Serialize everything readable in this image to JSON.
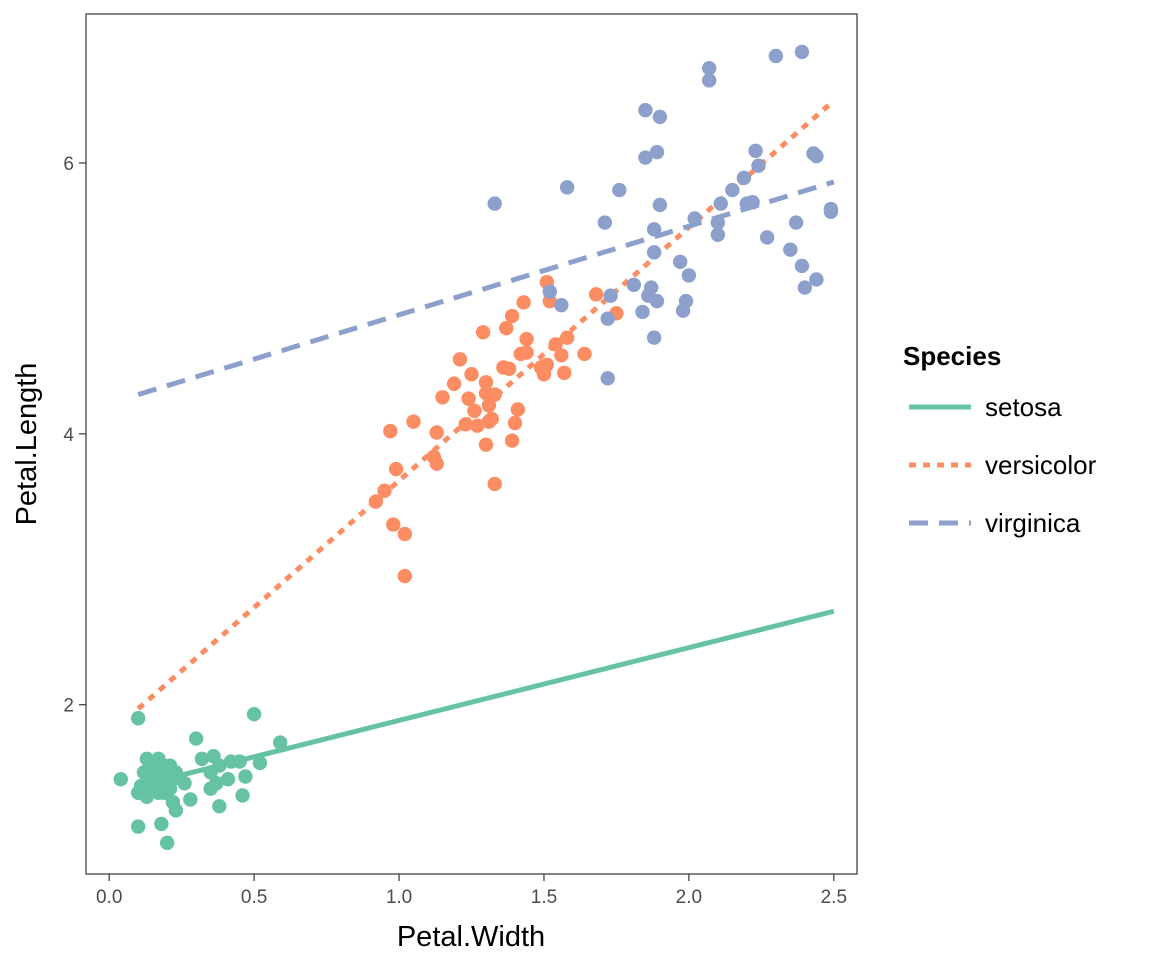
{
  "chart_data": {
    "type": "scatter",
    "xlabel": "Petal.Width",
    "ylabel": "Petal.Length",
    "xlim": [
      -0.08,
      2.58
    ],
    "ylim": [
      0.75,
      7.1
    ],
    "x_ticks": [
      0.0,
      0.5,
      1.0,
      1.5,
      2.0,
      2.5
    ],
    "x_tick_labels": [
      "0.0",
      "0.5",
      "1.0",
      "1.5",
      "2.0",
      "2.5"
    ],
    "y_ticks": [
      2,
      4,
      6
    ],
    "y_tick_labels": [
      "2",
      "4",
      "6"
    ],
    "grid": false,
    "legend": {
      "title": "Species",
      "position": "right"
    },
    "series": [
      {
        "name": "setosa",
        "color": "#66c2a5",
        "line_style": "solid",
        "fit_line": {
          "x": [
            0.1,
            2.5
          ],
          "y": [
            1.4,
            2.69
          ]
        },
        "points": [
          [
            0.04,
            1.45
          ],
          [
            0.1,
            1.9
          ],
          [
            0.1,
            1.35
          ],
          [
            0.1,
            1.1
          ],
          [
            0.11,
            1.4
          ],
          [
            0.12,
            1.35
          ],
          [
            0.12,
            1.5
          ],
          [
            0.13,
            1.6
          ],
          [
            0.13,
            1.32
          ],
          [
            0.14,
            1.45
          ],
          [
            0.14,
            1.55
          ],
          [
            0.15,
            1.5
          ],
          [
            0.15,
            1.4
          ],
          [
            0.15,
            1.38
          ],
          [
            0.16,
            1.5
          ],
          [
            0.16,
            1.45
          ],
          [
            0.17,
            1.6
          ],
          [
            0.17,
            1.55
          ],
          [
            0.17,
            1.35
          ],
          [
            0.18,
            1.5
          ],
          [
            0.18,
            1.12
          ],
          [
            0.19,
            1.55
          ],
          [
            0.19,
            1.4
          ],
          [
            0.19,
            1.35
          ],
          [
            0.2,
            1.5
          ],
          [
            0.2,
            1.42
          ],
          [
            0.2,
            0.98
          ],
          [
            0.21,
            1.55
          ],
          [
            0.21,
            1.38
          ],
          [
            0.22,
            1.45
          ],
          [
            0.22,
            1.28
          ],
          [
            0.23,
            1.5
          ],
          [
            0.23,
            1.22
          ],
          [
            0.26,
            1.42
          ],
          [
            0.28,
            1.3
          ],
          [
            0.3,
            1.75
          ],
          [
            0.32,
            1.6
          ],
          [
            0.35,
            1.5
          ],
          [
            0.35,
            1.38
          ],
          [
            0.36,
            1.62
          ],
          [
            0.37,
            1.42
          ],
          [
            0.38,
            1.25
          ],
          [
            0.38,
            1.55
          ],
          [
            0.41,
            1.45
          ],
          [
            0.42,
            1.58
          ],
          [
            0.45,
            1.58
          ],
          [
            0.46,
            1.33
          ],
          [
            0.47,
            1.47
          ],
          [
            0.5,
            1.93
          ],
          [
            0.52,
            1.57
          ],
          [
            0.59,
            1.72
          ]
        ]
      },
      {
        "name": "versicolor",
        "color": "#fc8d62",
        "line_style": "dotted",
        "fit_line": {
          "x": [
            0.1,
            2.5
          ],
          "y": [
            1.97,
            6.46
          ]
        },
        "points": [
          [
            0.92,
            3.5
          ],
          [
            0.95,
            3.58
          ],
          [
            0.97,
            4.02
          ],
          [
            0.98,
            3.33
          ],
          [
            0.99,
            3.74
          ],
          [
            1.02,
            2.95
          ],
          [
            1.02,
            3.26
          ],
          [
            1.05,
            4.09
          ],
          [
            1.12,
            3.83
          ],
          [
            1.13,
            4.01
          ],
          [
            1.13,
            3.78
          ],
          [
            1.15,
            4.27
          ],
          [
            1.19,
            4.37
          ],
          [
            1.21,
            4.55
          ],
          [
            1.23,
            4.07
          ],
          [
            1.24,
            4.26
          ],
          [
            1.25,
            4.44
          ],
          [
            1.26,
            4.17
          ],
          [
            1.27,
            4.06
          ],
          [
            1.29,
            4.75
          ],
          [
            1.3,
            3.92
          ],
          [
            1.3,
            4.38
          ],
          [
            1.3,
            4.3
          ],
          [
            1.31,
            4.21
          ],
          [
            1.31,
            4.09
          ],
          [
            1.32,
            4.11
          ],
          [
            1.33,
            4.29
          ],
          [
            1.33,
            3.63
          ],
          [
            1.36,
            4.49
          ],
          [
            1.37,
            4.78
          ],
          [
            1.38,
            4.48
          ],
          [
            1.39,
            3.95
          ],
          [
            1.39,
            4.87
          ],
          [
            1.4,
            4.08
          ],
          [
            1.41,
            4.18
          ],
          [
            1.42,
            4.59
          ],
          [
            1.43,
            4.97
          ],
          [
            1.44,
            4.7
          ],
          [
            1.44,
            4.6
          ],
          [
            1.49,
            4.49
          ],
          [
            1.5,
            4.44
          ],
          [
            1.51,
            4.51
          ],
          [
            1.51,
            5.12
          ],
          [
            1.52,
            4.98
          ],
          [
            1.54,
            4.66
          ],
          [
            1.56,
            4.58
          ],
          [
            1.57,
            4.45
          ],
          [
            1.58,
            4.71
          ],
          [
            1.64,
            4.59
          ],
          [
            1.68,
            5.03
          ],
          [
            1.75,
            4.89
          ]
        ]
      },
      {
        "name": "virginica",
        "color": "#8da0cb",
        "line_style": "dashed",
        "fit_line": {
          "x": [
            0.1,
            2.5
          ],
          "y": [
            4.29,
            5.86
          ]
        },
        "points": [
          [
            1.33,
            5.7
          ],
          [
            1.52,
            5.05
          ],
          [
            1.56,
            4.95
          ],
          [
            1.58,
            5.82
          ],
          [
            1.71,
            5.56
          ],
          [
            1.72,
            4.85
          ],
          [
            1.72,
            4.41
          ],
          [
            1.73,
            5.02
          ],
          [
            1.76,
            5.8
          ],
          [
            1.81,
            5.1
          ],
          [
            1.84,
            4.9
          ],
          [
            1.85,
            6.39
          ],
          [
            1.85,
            6.04
          ],
          [
            1.86,
            5.02
          ],
          [
            1.87,
            5.08
          ],
          [
            1.88,
            4.71
          ],
          [
            1.88,
            5.51
          ],
          [
            1.88,
            5.34
          ],
          [
            1.89,
            6.08
          ],
          [
            1.89,
            4.98
          ],
          [
            1.9,
            5.69
          ],
          [
            1.9,
            6.34
          ],
          [
            1.97,
            5.27
          ],
          [
            1.98,
            4.91
          ],
          [
            1.99,
            4.98
          ],
          [
            2.0,
            5.17
          ],
          [
            2.02,
            5.59
          ],
          [
            2.07,
            6.61
          ],
          [
            2.07,
            6.7
          ],
          [
            2.1,
            5.47
          ],
          [
            2.1,
            5.56
          ],
          [
            2.11,
            5.7
          ],
          [
            2.15,
            5.8
          ],
          [
            2.19,
            5.89
          ],
          [
            2.2,
            5.7
          ],
          [
            2.22,
            5.71
          ],
          [
            2.23,
            6.09
          ],
          [
            2.24,
            5.98
          ],
          [
            2.27,
            5.45
          ],
          [
            2.3,
            6.79
          ],
          [
            2.35,
            5.36
          ],
          [
            2.37,
            5.56
          ],
          [
            2.39,
            5.24
          ],
          [
            2.39,
            6.82
          ],
          [
            2.4,
            5.08
          ],
          [
            2.43,
            6.07
          ],
          [
            2.44,
            6.05
          ],
          [
            2.44,
            5.14
          ],
          [
            2.49,
            5.66
          ],
          [
            2.49,
            5.64
          ]
        ]
      }
    ]
  }
}
